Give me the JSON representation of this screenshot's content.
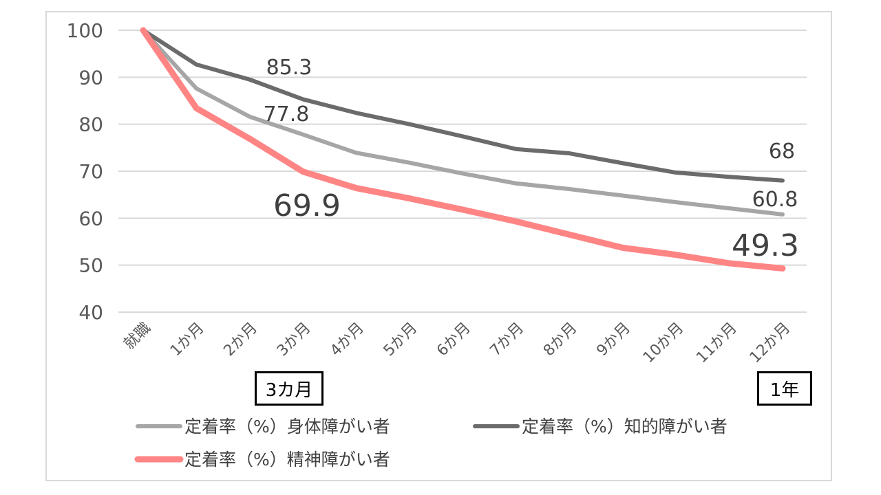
{
  "chart_data": {
    "type": "line",
    "categories": [
      "就職",
      "1か月",
      "2か月",
      "3か月",
      "4か月",
      "5か月",
      "6か月",
      "7か月",
      "8か月",
      "9か月",
      "10か月",
      "11か月",
      "12か月"
    ],
    "ylim": [
      40,
      100
    ],
    "yticks": [
      40,
      50,
      60,
      70,
      80,
      90,
      100
    ],
    "grid": true,
    "legend_position": "bottom",
    "series": [
      {
        "name": "定着率（%）身体障がい者",
        "color": "#a6a6a6",
        "values": [
          100,
          87.6,
          81.6,
          77.8,
          73.9,
          71.8,
          69.5,
          67.4,
          66.2,
          64.8,
          63.4,
          62.1,
          60.8
        ]
      },
      {
        "name": "定着率（%）知的障がい者",
        "color": "#6b6b6b",
        "values": [
          100,
          92.7,
          89.5,
          85.3,
          82.4,
          80.0,
          77.4,
          74.7,
          73.8,
          71.7,
          69.7,
          68.8,
          68
        ]
      },
      {
        "name": "定着率（%）精神障がい者",
        "color": "#ff8585",
        "values": [
          100,
          83.4,
          76.9,
          69.9,
          66.4,
          64.2,
          61.8,
          59.3,
          56.5,
          53.7,
          52.2,
          50.4,
          49.3
        ]
      }
    ],
    "data_labels": [
      {
        "series": 1,
        "index": 3,
        "text": "85.3"
      },
      {
        "series": 0,
        "index": 3,
        "text": "77.8"
      },
      {
        "series": 2,
        "index": 3,
        "text": "69.9"
      },
      {
        "series": 1,
        "index": 12,
        "text": "68"
      },
      {
        "series": 0,
        "index": 12,
        "text": "60.8"
      },
      {
        "series": 2,
        "index": 12,
        "text": "49.3"
      }
    ]
  },
  "annotations": {
    "three_months": "3カ月",
    "one_year": "1年"
  }
}
